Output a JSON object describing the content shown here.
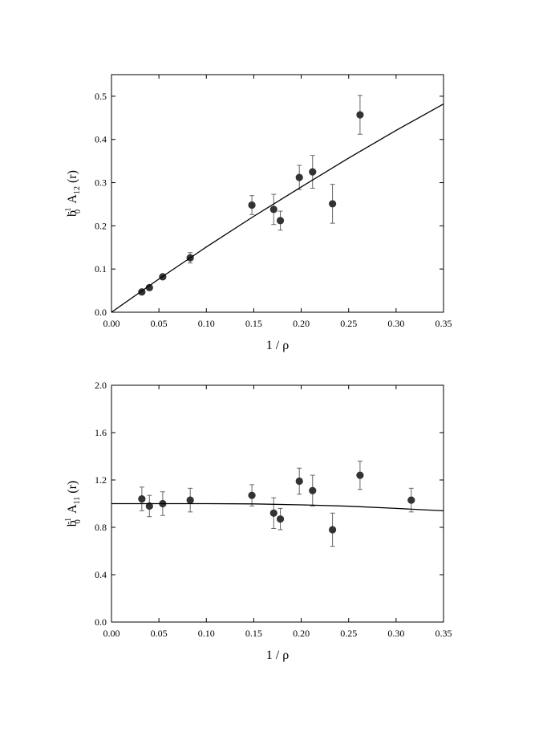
{
  "chart_data": [
    {
      "type": "scatter",
      "title": "",
      "xlabel": "1 / ρ",
      "ylabel": {
        "base": "b",
        "sub1": "0",
        "sup": "-1",
        "main": "A",
        "sub2": "12",
        "arg": "(r)"
      },
      "xlim": [
        0,
        0.35
      ],
      "ylim": [
        0,
        0.55
      ],
      "xticks": [
        "0.00",
        "0.05",
        "0.10",
        "0.15",
        "0.20",
        "0.25",
        "0.30",
        "0.35"
      ],
      "yticks": [
        "0.0",
        "0.1",
        "0.2",
        "0.3",
        "0.4",
        "0.5"
      ],
      "grid": false,
      "series": [
        {
          "type": "scatter-errorbar",
          "points": [
            {
              "x": 0.032,
              "y": 0.047,
              "err": 0.0
            },
            {
              "x": 0.04,
              "y": 0.057,
              "err": 0.0
            },
            {
              "x": 0.054,
              "y": 0.082,
              "err": 0.0
            },
            {
              "x": 0.083,
              "y": 0.126,
              "err": 0.012
            },
            {
              "x": 0.148,
              "y": 0.248,
              "err": 0.022
            },
            {
              "x": 0.171,
              "y": 0.238,
              "err": 0.035
            },
            {
              "x": 0.178,
              "y": 0.212,
              "err": 0.022
            },
            {
              "x": 0.198,
              "y": 0.312,
              "err": 0.028
            },
            {
              "x": 0.212,
              "y": 0.325,
              "err": 0.038
            },
            {
              "x": 0.233,
              "y": 0.251,
              "err": 0.045
            },
            {
              "x": 0.262,
              "y": 0.457,
              "err": 0.045
            }
          ]
        },
        {
          "type": "line",
          "x": [
            0,
            0.05,
            0.1,
            0.15,
            0.2,
            0.25,
            0.3,
            0.35
          ],
          "y": [
            0,
            0.077,
            0.151,
            0.222,
            0.29,
            0.357,
            0.421,
            0.482
          ]
        }
      ]
    },
    {
      "type": "scatter",
      "title": "",
      "xlabel": "1 / ρ",
      "ylabel": {
        "base": "b",
        "sub1": "0",
        "sup": "-1",
        "main": "A",
        "sub2": "11",
        "arg": "(r)"
      },
      "xlim": [
        0,
        0.35
      ],
      "ylim": [
        0,
        2.0
      ],
      "xticks": [
        "0.00",
        "0.05",
        "0.10",
        "0.15",
        "0.20",
        "0.25",
        "0.30",
        "0.35"
      ],
      "yticks": [
        "0.0",
        "0.4",
        "0.8",
        "1.2",
        "1.6",
        "2.0"
      ],
      "grid": false,
      "series": [
        {
          "type": "scatter-errorbar",
          "points": [
            {
              "x": 0.032,
              "y": 1.04,
              "err": 0.1
            },
            {
              "x": 0.04,
              "y": 0.98,
              "err": 0.09
            },
            {
              "x": 0.054,
              "y": 1.0,
              "err": 0.1
            },
            {
              "x": 0.083,
              "y": 1.03,
              "err": 0.1
            },
            {
              "x": 0.148,
              "y": 1.07,
              "err": 0.09
            },
            {
              "x": 0.171,
              "y": 0.92,
              "err": 0.13
            },
            {
              "x": 0.178,
              "y": 0.87,
              "err": 0.09
            },
            {
              "x": 0.198,
              "y": 1.19,
              "err": 0.11
            },
            {
              "x": 0.212,
              "y": 1.11,
              "err": 0.13
            },
            {
              "x": 0.233,
              "y": 0.78,
              "err": 0.14
            },
            {
              "x": 0.262,
              "y": 1.24,
              "err": 0.12
            },
            {
              "x": 0.316,
              "y": 1.03,
              "err": 0.1
            }
          ]
        },
        {
          "type": "line",
          "x": [
            0,
            0.05,
            0.1,
            0.15,
            0.2,
            0.25,
            0.3,
            0.35
          ],
          "y": [
            1.0,
            1.0,
            1.0,
            0.998,
            0.99,
            0.978,
            0.96,
            0.94
          ]
        }
      ]
    }
  ]
}
